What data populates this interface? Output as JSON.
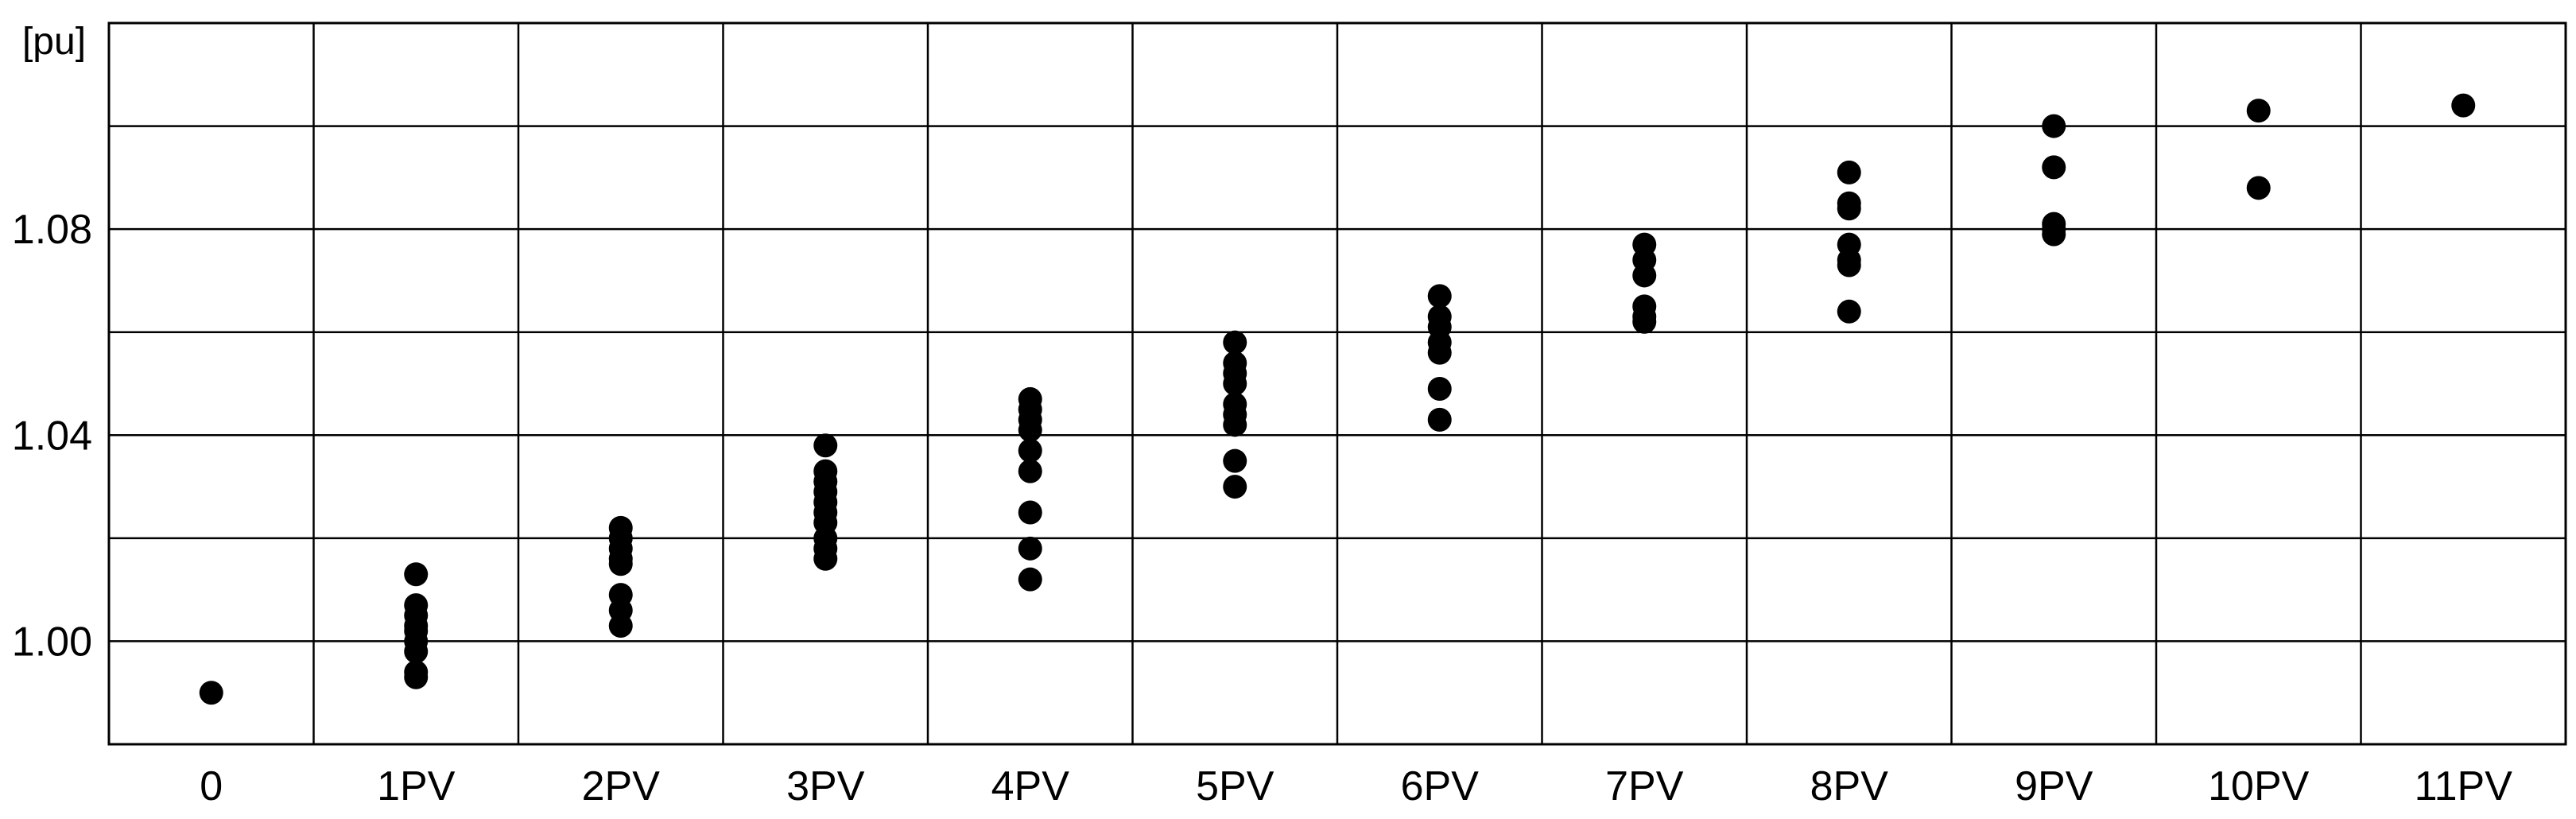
{
  "chart_data": {
    "type": "scatter",
    "title": "",
    "xlabel": "",
    "ylabel": "[pu]",
    "categories": [
      "0",
      "1PV",
      "2PV",
      "3PV",
      "4PV",
      "5PV",
      "6PV",
      "7PV",
      "8PV",
      "9PV",
      "10PV",
      "11PV"
    ],
    "ylim": [
      0.98,
      1.12
    ],
    "yticks": [
      1.0,
      1.04,
      1.08
    ],
    "ytick_labels": [
      "1.00",
      "1.04",
      "1.08"
    ],
    "grid": true,
    "legend": "none",
    "marker_color": "#000000",
    "series": [
      {
        "values": [
          [
            0.99
          ],
          [
            0.993,
            0.994,
            0.998,
            1.0,
            1.002,
            1.003,
            1.005,
            1.007,
            1.013
          ],
          [
            1.003,
            1.006,
            1.009,
            1.015,
            1.016,
            1.018,
            1.02,
            1.022
          ],
          [
            1.016,
            1.018,
            1.02,
            1.023,
            1.025,
            1.027,
            1.029,
            1.031,
            1.033,
            1.038
          ],
          [
            1.012,
            1.018,
            1.025,
            1.033,
            1.037,
            1.041,
            1.043,
            1.045,
            1.047
          ],
          [
            1.03,
            1.035,
            1.042,
            1.044,
            1.046,
            1.05,
            1.052,
            1.054,
            1.058
          ],
          [
            1.043,
            1.049,
            1.056,
            1.058,
            1.061,
            1.063,
            1.067
          ],
          [
            1.062,
            1.063,
            1.065,
            1.071,
            1.074,
            1.077
          ],
          [
            1.064,
            1.073,
            1.074,
            1.077,
            1.084,
            1.085,
            1.091
          ],
          [
            1.079,
            1.08,
            1.081,
            1.092,
            1.1
          ],
          [
            1.088,
            1.103
          ],
          [
            1.104
          ]
        ]
      }
    ]
  }
}
